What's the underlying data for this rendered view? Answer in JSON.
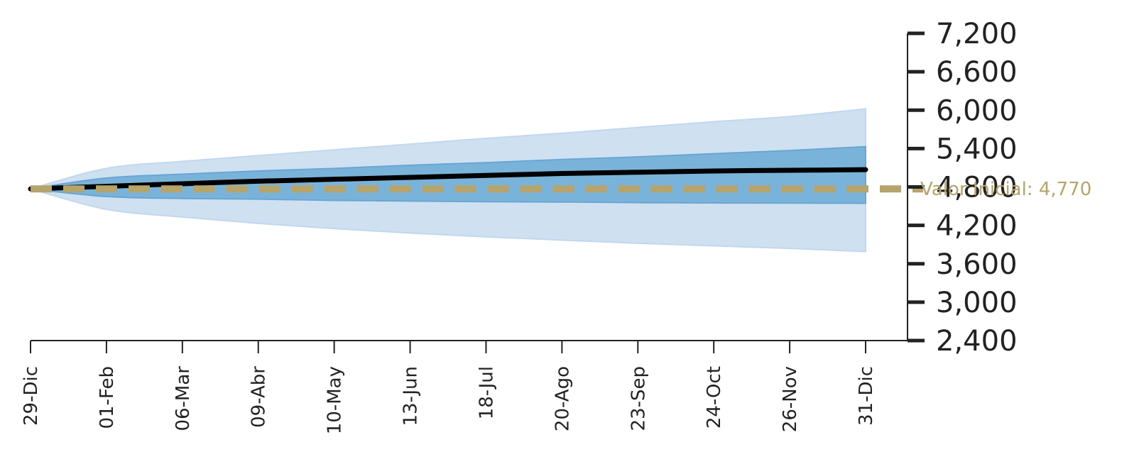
{
  "chart_data": {
    "type": "area",
    "title": "",
    "xlabel": "",
    "ylabel": "",
    "x": [
      "29-Dic",
      "01-Feb",
      "06-Mar",
      "09-Abr",
      "10-May",
      "13-Jun",
      "18-Jul",
      "20-Ago",
      "23-Sep",
      "24-Oct",
      "26-Nov",
      "31-Dic"
    ],
    "ylim": [
      2400,
      7200
    ],
    "yticks": [
      {
        "value": 7200,
        "label": "7,200"
      },
      {
        "value": 6600,
        "label": "6,600"
      },
      {
        "value": 6000,
        "label": "6,000"
      },
      {
        "value": 5400,
        "label": "5,400"
      },
      {
        "value": 4800,
        "label": "4,800"
      },
      {
        "value": 4200,
        "label": "4,200"
      },
      {
        "value": 3600,
        "label": "3,600"
      },
      {
        "value": 3000,
        "label": "3,000"
      },
      {
        "value": 2400,
        "label": "2,400"
      }
    ],
    "y_axis_side": "right",
    "grid": false,
    "series": [
      {
        "role": "outer-band",
        "upper": [
          4770,
          5090,
          5200,
          5290,
          5380,
          5470,
          5560,
          5640,
          5730,
          5820,
          5900,
          6020
        ],
        "lower": [
          4770,
          4450,
          4330,
          4230,
          4150,
          4080,
          4020,
          3970,
          3920,
          3880,
          3840,
          3790
        ],
        "color": "#cfe0f1"
      },
      {
        "role": "inner-band",
        "upper": [
          4770,
          4940,
          5000,
          5050,
          5090,
          5140,
          5180,
          5230,
          5270,
          5320,
          5370,
          5430
        ],
        "lower": [
          4770,
          4650,
          4620,
          4610,
          4590,
          4580,
          4570,
          4565,
          4555,
          4550,
          4548,
          4545
        ],
        "color": "#7ab3da"
      },
      {
        "role": "median",
        "values": [
          4770,
          4810,
          4850,
          4890,
          4920,
          4950,
          4980,
          5010,
          5030,
          5050,
          5060,
          5070
        ],
        "color": "#000000"
      }
    ],
    "reference_line": {
      "value": 4770,
      "label": "Valor Inicial: 4,770",
      "color": "#b5a46c",
      "style": "dashed"
    }
  }
}
